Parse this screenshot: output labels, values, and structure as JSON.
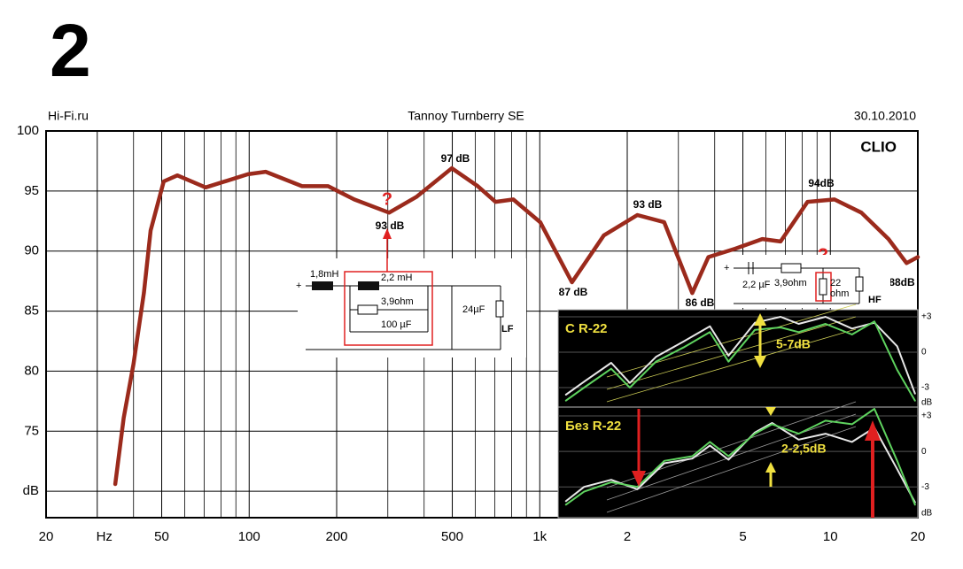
{
  "page_label": "2",
  "chart_data": [
    {
      "type": "line",
      "title": "Tannoy Turnberry SE",
      "source": "Hi-Fi.ru",
      "date": "30.10.2010",
      "watermark": "CLIO",
      "log_x": true,
      "grid": true,
      "xlim": [
        20,
        20000
      ],
      "xticks": [
        20,
        {
          "value": 30,
          "label": "Hz"
        },
        50,
        100,
        200,
        500,
        {
          "value": 1000,
          "label": "1k"
        },
        {
          "value": 2000,
          "label": "2"
        },
        {
          "value": 5000,
          "label": "5"
        },
        {
          "value": 10000,
          "label": "10"
        },
        {
          "value": 20000,
          "label": "20"
        }
      ],
      "minor_xticks": [
        40,
        60,
        70,
        80,
        90,
        300,
        400,
        600,
        700,
        800,
        900,
        3000,
        4000,
        6000,
        7000,
        8000,
        9000
      ],
      "ylim": [
        67.8,
        100
      ],
      "yticks": [
        100,
        95,
        90,
        85,
        80,
        75,
        {
          "value": 70,
          "label": "dB"
        }
      ],
      "x": [
        34.6,
        37,
        40,
        43.4,
        45.8,
        50.8,
        56.6,
        70.8,
        99,
        114,
        152,
        187,
        230,
        303,
        376,
        498,
        612,
        704,
        811,
        1004,
        1291,
        1661,
        2166,
        2681,
        3349,
        3805,
        4710,
        5833,
        6740,
        8347,
        10330,
        12790,
        15850,
        18300,
        20000
      ],
      "series": [
        {
          "color": "#9b2a1c",
          "values": [
            70.6,
            76.1,
            80.6,
            86.5,
            91.7,
            95.8,
            96.3,
            95.3,
            96.4,
            96.6,
            95.4,
            95.4,
            94.3,
            93.2,
            94.5,
            96.9,
            95.4,
            94.1,
            94.3,
            92.4,
            87.4,
            91.3,
            93,
            92.4,
            86.5,
            89.5,
            90.2,
            91,
            90.8,
            94.1,
            94.3,
            93.2,
            91,
            89,
            89.5
          ]
        }
      ],
      "annotations": [
        "97 dB",
        "93 dB",
        "93 dB",
        "87 dB",
        "86 dB",
        "94dB",
        "88dB",
        "?",
        "?"
      ]
    },
    {
      "type": "line",
      "title": "С R-22",
      "annotation": "5-7dB",
      "log_x": true,
      "xlim": [
        1156,
        20000
      ],
      "ylim": [
        -4.65,
        3.6
      ],
      "yticks": [
        {
          "value": 3,
          "label": "+3"
        },
        0,
        -3
      ],
      "ylabel": "dB",
      "x": [
        1230,
        1420,
        1760,
        2040,
        2510,
        3120,
        3850,
        4460,
        5500,
        6740,
        7780,
        9620,
        11870,
        14180,
        16980,
        19550
      ],
      "series": [
        {
          "color": "#e8e8e8",
          "values": [
            -3.6,
            -2.5,
            -0.9,
            -2.6,
            -0.4,
            0.9,
            2.2,
            -0.3,
            2.5,
            3.0,
            2.4,
            3.0,
            2.0,
            2.5,
            0.5,
            -3.5
          ]
        },
        {
          "color": "#5fd35f",
          "values": [
            -4.1,
            -3,
            -1.4,
            -3,
            -0.8,
            0.4,
            1.7,
            -0.8,
            1.9,
            2.1,
            1.7,
            2.4,
            1.5,
            2.6,
            -1.5,
            -4.1
          ]
        }
      ]
    },
    {
      "type": "line",
      "title": "Без R-22",
      "annotation": "2-2,5dB",
      "log_x": true,
      "xlim": [
        1156,
        20000
      ],
      "ylim": [
        -5.6,
        3.75
      ],
      "yticks": [
        {
          "value": 3,
          "label": "+3"
        },
        0,
        -3
      ],
      "ylabel": "dB",
      "x": [
        1230,
        1420,
        1760,
        2166,
        2681,
        3349,
        3850,
        4460,
        5500,
        6300,
        7780,
        9620,
        11870,
        14180,
        16980,
        19550
      ],
      "series": [
        {
          "color": "#e8e8e8",
          "values": [
            -4.2,
            -3,
            -2.4,
            -3.2,
            -1,
            -0.6,
            0.5,
            -0.7,
            1.6,
            2.4,
            1.0,
            1.5,
            0.8,
            2.0,
            -1.5,
            -4.3
          ]
        },
        {
          "color": "#5fd35f",
          "values": [
            -4.5,
            -3.4,
            -2.6,
            -3,
            -0.8,
            -0.4,
            0.8,
            -0.4,
            1.5,
            2.3,
            1.5,
            2.6,
            2.3,
            3.6,
            -0.8,
            -4.5
          ]
        }
      ]
    }
  ],
  "schematics": {
    "lf": {
      "labels": [
        "+",
        "1,8mH",
        "2,2 mH",
        "3,9ohm",
        "100  µF",
        "24µF",
        "LF"
      ]
    },
    "hf": {
      "labels": [
        "+",
        "2,2 µF",
        "3,9ohm",
        "22",
        "ohm",
        "HF"
      ]
    }
  }
}
